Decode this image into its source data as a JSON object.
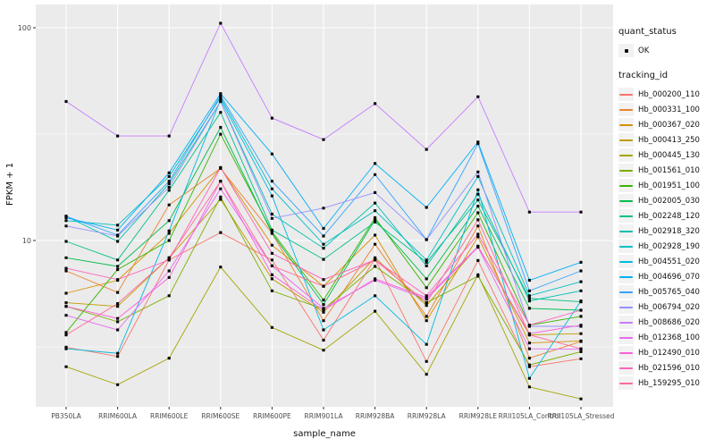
{
  "figure": {
    "xlabel": "sample_name",
    "ylabel": "FPKM + 1",
    "panel_color": "#EBEBEB",
    "grid_color": "#FFFFFF",
    "tick_label_color": "#4D4D4D",
    "legend": {
      "quant_status_title": "quant_status",
      "quant_status_items": [
        {
          "label": "OK",
          "marker": "point"
        }
      ],
      "tracking_id_title": "tracking_id"
    }
  },
  "chart_data": {
    "type": "line",
    "title": "",
    "xlabel": "sample_name",
    "ylabel": "FPKM + 1",
    "yscale": "log10",
    "yticks": [
      10,
      100
    ],
    "ytick_labels": [
      "10",
      "100"
    ],
    "ylim": [
      1.66,
      129
    ],
    "grid": "white major gridlines at 10 and 100 plus minor at 3.16 and 31.6 on gray panel; vertical major gridline per category",
    "legend_position": "right",
    "point_marker": "small black square (quant_status OK)",
    "quant_status_legend_title": "quant_status",
    "quant_status_values": [
      "OK"
    ],
    "series_legend_title": "tracking_id",
    "x_categories": [
      "PB350LA",
      "RRIM600LA",
      "RRIM600LE",
      "RRIM600SE",
      "RRIM600PE",
      "RRIM901LA",
      "RRIM928BA",
      "RRIM928LA",
      "RRIM928LE",
      "RRII105LA_Control",
      "RRII105LA_Stressed"
    ],
    "series": [
      {
        "name": "Hb_000200_110",
        "color": "#F8766D",
        "values": [
          3.15,
          2.85,
          8.1,
          10.9,
          8.1,
          3.4,
          8.2,
          2.7,
          8.05,
          2.55,
          2.78
        ]
      },
      {
        "name": "Hb_000331_100",
        "color": "#EA8331",
        "values": [
          7.2,
          5.7,
          14.7,
          21.8,
          10.8,
          4.2,
          9.6,
          4.4,
          11.7,
          2.8,
          3.35
        ]
      },
      {
        "name": "Hb_000367_020",
        "color": "#D89000",
        "values": [
          5.65,
          6.5,
          10.8,
          22,
          9.5,
          6.1,
          10.6,
          4.2,
          10.4,
          3.3,
          3.37
        ]
      },
      {
        "name": "Hb_000413_250",
        "color": "#C09B00",
        "values": [
          5.1,
          4.9,
          8.3,
          15.6,
          6.6,
          4.6,
          8.3,
          4.95,
          9.4,
          3.6,
          3.65
        ]
      },
      {
        "name": "Hb_000445_130",
        "color": "#A3A500",
        "values": [
          2.55,
          2.1,
          2.8,
          7.5,
          3.9,
          3.05,
          4.65,
          2.35,
          6.9,
          2.05,
          1.8
        ]
      },
      {
        "name": "Hb_001561_010",
        "color": "#7CAE00",
        "values": [
          4.9,
          4.15,
          5.5,
          16,
          5.8,
          4.75,
          7.55,
          5.1,
          6.8,
          2.6,
          3.0
        ]
      },
      {
        "name": "Hb_001951_100",
        "color": "#39B600",
        "values": [
          3.7,
          7.3,
          10.0,
          31.6,
          11.0,
          5.25,
          12.8,
          6.0,
          13.5,
          4.0,
          4.4
        ]
      },
      {
        "name": "Hb_002005_030",
        "color": "#00BB4E",
        "values": [
          8.3,
          7.55,
          12.4,
          34,
          10.8,
          5.0,
          12.5,
          6.6,
          14.5,
          4.8,
          4.7
        ]
      },
      {
        "name": "Hb_002248_120",
        "color": "#00C087",
        "values": [
          9.9,
          8.1,
          17.2,
          40,
          11.2,
          8.15,
          12.2,
          7.9,
          15.5,
          5.35,
          5.15
        ]
      },
      {
        "name": "Hb_002918_320",
        "color": "#00C0AF",
        "values": [
          13,
          9.9,
          18.5,
          45,
          13.3,
          9.2,
          15,
          7.6,
          16.5,
          5.2,
          5.8
        ]
      },
      {
        "name": "Hb_002928_190",
        "color": "#00BFC4",
        "values": [
          12.4,
          11.8,
          20,
          47,
          17.5,
          9.6,
          13.8,
          8.1,
          20,
          5.5,
          6.4
        ]
      },
      {
        "name": "Hb_004551_020",
        "color": "#00BAE0",
        "values": [
          3.1,
          2.95,
          11.1,
          46,
          16.2,
          3.8,
          5.5,
          3.25,
          17.3,
          2.25,
          5.2
        ]
      },
      {
        "name": "Hb_004696_070",
        "color": "#00B0F6",
        "values": [
          12.8,
          11.2,
          20.8,
          49,
          25.5,
          11.4,
          23,
          14.3,
          29,
          6.5,
          7.9
        ]
      },
      {
        "name": "Hb_005765_040",
        "color": "#35A2FF",
        "values": [
          13,
          10.6,
          19,
          48,
          19,
          10.5,
          20.4,
          10.1,
          28.5,
          5.8,
          7.2
        ]
      },
      {
        "name": "Hb_006794_020",
        "color": "#9590FF",
        "values": [
          11.7,
          10.5,
          17.8,
          45,
          12.7,
          14.2,
          16.8,
          10.1,
          21,
          3.95,
          3.95
        ]
      },
      {
        "name": "Hb_008686_020",
        "color": "#C77CFF",
        "values": [
          45,
          31,
          31,
          105,
          37.6,
          29.8,
          44,
          26.8,
          47.4,
          13.6,
          13.6
        ]
      },
      {
        "name": "Hb_012368_100",
        "color": "#E76BF3",
        "values": [
          4.45,
          3.8,
          7.2,
          17.5,
          7.6,
          4.8,
          6.5,
          5.3,
          9.3,
          3.1,
          3.08
        ]
      },
      {
        "name": "Hb_012490_010",
        "color": "#FA62DB",
        "values": [
          4.9,
          4.3,
          6.7,
          19,
          6.9,
          4.7,
          6.6,
          5.4,
          9.35,
          3.65,
          4.0
        ]
      },
      {
        "name": "Hb_021596_010",
        "color": "#FF62BC",
        "values": [
          7.4,
          6.55,
          8.1,
          22,
          8.7,
          6.55,
          8.1,
          5.5,
          10.7,
          4.0,
          4.7
        ]
      },
      {
        "name": "Hb_159295_010",
        "color": "#FF6A98",
        "values": [
          3.6,
          5.05,
          8.3,
          19,
          7.6,
          6.1,
          8.1,
          5.1,
          12.5,
          3.6,
          3.1
        ]
      }
    ]
  }
}
